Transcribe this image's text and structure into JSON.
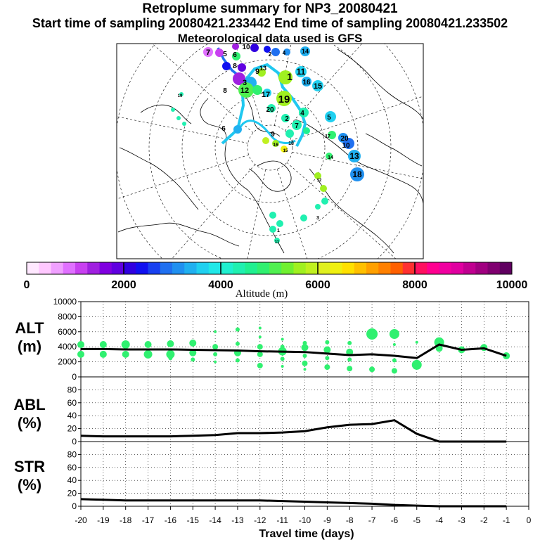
{
  "titles": {
    "line1": "Retroplume summary for NP3_20080421",
    "line2": "Start time of sampling 20080421.233442     End time of sampling 20080421.233502",
    "line3": "Meteorological data used is GFS"
  },
  "colorbar": {
    "title": "Altitude (m)",
    "ticks": [
      "0",
      "2000",
      "4000",
      "6000",
      "8000",
      "10000"
    ],
    "colors": [
      "#ffe8ff",
      "#ffc8ff",
      "#f0a0ff",
      "#e070ff",
      "#c840f0",
      "#a020e0",
      "#8000e0",
      "#6000e0",
      "#3000e0",
      "#1010f0",
      "#1840f0",
      "#2070f0",
      "#2090f0",
      "#20b0f0",
      "#20d0f0",
      "#20e8e8",
      "#20f0d0",
      "#20f0b0",
      "#20f090",
      "#30f070",
      "#50f050",
      "#70f030",
      "#a0f020",
      "#c0f020",
      "#e0f020",
      "#f0f010",
      "#ffe000",
      "#ffc000",
      "#ffa000",
      "#ff8000",
      "#ff6000",
      "#ff3030",
      "#ff1060",
      "#ff0090",
      "#f000a0",
      "#e000a0",
      "#c00090",
      "#a00080",
      "#800070",
      "#600060"
    ]
  },
  "map": {
    "labels": [
      "7",
      "6",
      "8",
      "9",
      "3",
      "1",
      "11",
      "14",
      "16",
      "15",
      "12",
      "17",
      "19",
      "20",
      "2",
      "4",
      "5",
      "10",
      "13",
      "18"
    ]
  },
  "chart_data": [
    {
      "type": "scatter",
      "name": "ALT",
      "ylabel": [
        "ALT",
        "(m)"
      ],
      "ylim": [
        0,
        10000
      ],
      "yticks": [
        "0",
        "2000",
        "4000",
        "6000",
        "8000",
        "10000"
      ],
      "point_color": "#30f070",
      "line_x": [
        -20,
        -19,
        -18,
        -17,
        -16,
        -15,
        -14,
        -13,
        -12,
        -11,
        -10,
        -9,
        -8,
        -7,
        -6,
        -5,
        -4,
        -3,
        -2,
        -1
      ],
      "line_y": [
        3700,
        3700,
        3650,
        3650,
        3650,
        3600,
        3550,
        3500,
        3400,
        3350,
        3300,
        3100,
        2900,
        3000,
        2800,
        2500,
        4300,
        3600,
        3800,
        2800
      ],
      "points": [
        {
          "x": -20,
          "y": 4300,
          "s": 5
        },
        {
          "x": -20,
          "y": 3000,
          "s": 5
        },
        {
          "x": -19,
          "y": 4300,
          "s": 5
        },
        {
          "x": -19,
          "y": 3000,
          "s": 5
        },
        {
          "x": -18,
          "y": 4300,
          "s": 6
        },
        {
          "x": -18,
          "y": 3000,
          "s": 5
        },
        {
          "x": -17,
          "y": 4300,
          "s": 5
        },
        {
          "x": -17,
          "y": 3000,
          "s": 6
        },
        {
          "x": -16,
          "y": 4400,
          "s": 5
        },
        {
          "x": -16,
          "y": 3000,
          "s": 6
        },
        {
          "x": -16,
          "y": 2500,
          "s": 3
        },
        {
          "x": -15,
          "y": 4500,
          "s": 5
        },
        {
          "x": -15,
          "y": 3200,
          "s": 5
        },
        {
          "x": -15,
          "y": 2300,
          "s": 3
        },
        {
          "x": -14,
          "y": 6000,
          "s": 2
        },
        {
          "x": -14,
          "y": 4000,
          "s": 4
        },
        {
          "x": -14,
          "y": 3000,
          "s": 3
        },
        {
          "x": -14,
          "y": 2000,
          "s": 2
        },
        {
          "x": -13,
          "y": 6300,
          "s": 3
        },
        {
          "x": -13,
          "y": 4400,
          "s": 3
        },
        {
          "x": -13,
          "y": 3200,
          "s": 5
        },
        {
          "x": -13,
          "y": 2200,
          "s": 3
        },
        {
          "x": -12,
          "y": 6500,
          "s": 2
        },
        {
          "x": -12,
          "y": 5300,
          "s": 2
        },
        {
          "x": -12,
          "y": 4000,
          "s": 4
        },
        {
          "x": -12,
          "y": 3000,
          "s": 4
        },
        {
          "x": -12,
          "y": 1500,
          "s": 4
        },
        {
          "x": -11,
          "y": 5000,
          "s": 2
        },
        {
          "x": -11,
          "y": 4000,
          "s": 3
        },
        {
          "x": -11,
          "y": 3400,
          "s": 6
        },
        {
          "x": -11,
          "y": 2400,
          "s": 3
        },
        {
          "x": -11,
          "y": 1400,
          "s": 2
        },
        {
          "x": -10,
          "y": 4500,
          "s": 3
        },
        {
          "x": -10,
          "y": 3900,
          "s": 5
        },
        {
          "x": -10,
          "y": 2800,
          "s": 3
        },
        {
          "x": -10,
          "y": 1800,
          "s": 4
        },
        {
          "x": -10,
          "y": 1000,
          "s": 2
        },
        {
          "x": -9,
          "y": 4600,
          "s": 3
        },
        {
          "x": -9,
          "y": 3600,
          "s": 5
        },
        {
          "x": -9,
          "y": 2500,
          "s": 3
        },
        {
          "x": -9,
          "y": 1300,
          "s": 4
        },
        {
          "x": -8,
          "y": 4500,
          "s": 3
        },
        {
          "x": -8,
          "y": 3300,
          "s": 5
        },
        {
          "x": -8,
          "y": 2300,
          "s": 3
        },
        {
          "x": -8,
          "y": 1100,
          "s": 4
        },
        {
          "x": -7,
          "y": 5700,
          "s": 8
        },
        {
          "x": -7,
          "y": 1000,
          "s": 4
        },
        {
          "x": -6,
          "y": 5700,
          "s": 7
        },
        {
          "x": -6,
          "y": 4300,
          "s": 2
        },
        {
          "x": -6,
          "y": 2200,
          "s": 3
        },
        {
          "x": -6,
          "y": 800,
          "s": 4
        },
        {
          "x": -5,
          "y": 4600,
          "s": 2
        },
        {
          "x": -5,
          "y": 2000,
          "s": 3
        },
        {
          "x": -5,
          "y": 1600,
          "s": 7
        },
        {
          "x": -4,
          "y": 4600,
          "s": 7
        },
        {
          "x": -4,
          "y": 3800,
          "s": 5
        },
        {
          "x": -3,
          "y": 3600,
          "s": 5
        },
        {
          "x": -2,
          "y": 3900,
          "s": 5
        },
        {
          "x": -1,
          "y": 2800,
          "s": 5
        }
      ]
    },
    {
      "type": "line",
      "name": "ABL",
      "ylabel": [
        "ABL",
        "(%)"
      ],
      "ylim": [
        0,
        100
      ],
      "yticks": [
        "0",
        "20",
        "40",
        "60",
        "80"
      ],
      "x": [
        -20,
        -19,
        -18,
        -17,
        -16,
        -15,
        -14,
        -13,
        -12,
        -11,
        -10,
        -9,
        -8,
        -7,
        -6,
        -5,
        -4,
        -3,
        -2,
        -1
      ],
      "y": [
        9,
        8,
        8,
        8,
        8,
        9,
        10,
        13,
        13,
        14,
        16,
        22,
        26,
        27,
        33,
        12,
        0,
        0,
        0,
        0
      ]
    },
    {
      "type": "line",
      "name": "STR",
      "ylabel": [
        "STR",
        "(%)"
      ],
      "ylim": [
        0,
        100
      ],
      "yticks": [
        "0",
        "20",
        "40",
        "60",
        "80"
      ],
      "x": [
        -20,
        -19,
        -18,
        -17,
        -16,
        -15,
        -14,
        -13,
        -12,
        -11,
        -10,
        -9,
        -8,
        -7,
        -6,
        -5,
        -4,
        -3,
        -2,
        -1
      ],
      "y": [
        11,
        10,
        9,
        9,
        9,
        9,
        9,
        9,
        9,
        8,
        7,
        6,
        5,
        4,
        2,
        1,
        0,
        0,
        0,
        0
      ]
    }
  ],
  "xaxis": {
    "label": "Travel time (days)",
    "ticks": [
      "-20",
      "-19",
      "-18",
      "-17",
      "-16",
      "-15",
      "-14",
      "-13",
      "-12",
      "-11",
      "-10",
      "-9",
      "-8",
      "-7",
      "-6",
      "-5",
      "-4",
      "-3",
      "-2",
      "-1",
      "0"
    ],
    "xlim": [
      -20,
      0
    ]
  }
}
